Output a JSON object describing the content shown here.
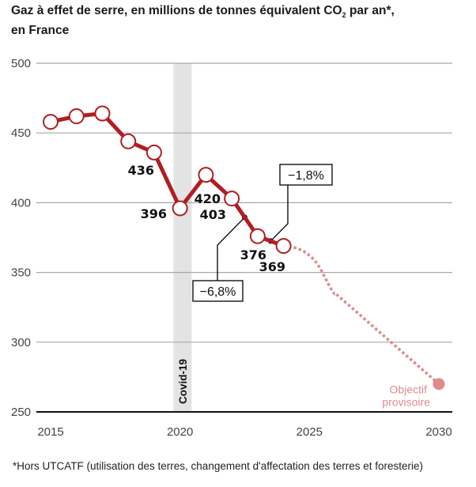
{
  "title_line1_pre": "Gaz à effet de serre, en millions de tonnes équivalent CO",
  "title_sub": "2",
  "title_line1_post": " par an*,",
  "title_line2": "en France",
  "footnote": "*Hors UTCATF (utilisation des terres, changement d'affectation des terres et foresterie)",
  "colors": {
    "line": "#b01e23",
    "projection": "#e08a8f",
    "covid_band": "#e3e3e3",
    "grid": "#a8a8a8",
    "axis": "#111111"
  },
  "chart_data": {
    "type": "line",
    "title": "Gaz à effet de serre, en millions de tonnes équivalent CO2 par an*, en France",
    "xlabel": "",
    "ylabel": "",
    "xlim": [
      2015,
      2030
    ],
    "ylim": [
      250,
      500
    ],
    "grid": true,
    "x_ticks": [
      "2015",
      "2020",
      "2025",
      "2030"
    ],
    "x_tick_values": [
      2015,
      2020,
      2025,
      2030
    ],
    "y_ticks": [
      "250",
      "300",
      "350",
      "400",
      "450",
      "500"
    ],
    "y_tick_values": [
      250,
      300,
      350,
      400,
      450,
      500
    ],
    "series": [
      {
        "name": "Émissions",
        "x": [
          2015,
          2016,
          2017,
          2018,
          2019,
          2020,
          2021,
          2022,
          2023,
          2024
        ],
        "values": [
          458,
          462,
          464,
          444,
          436,
          396,
          420,
          403,
          376,
          369
        ]
      },
      {
        "name": "Projection",
        "style": "dotted",
        "x": [
          2024,
          2025,
          2026,
          2030
        ],
        "values": [
          369,
          365,
          335,
          270
        ]
      }
    ],
    "data_labels": [
      {
        "year": 2019,
        "text": "436"
      },
      {
        "year": 2020,
        "text": "396"
      },
      {
        "year": 2021,
        "text": "420"
      },
      {
        "year": 2022,
        "text": "403"
      },
      {
        "year": 2023,
        "text": "376"
      },
      {
        "year": 2024,
        "text": "369"
      }
    ],
    "annotations": [
      {
        "text": "−6,8%",
        "between": [
          2022,
          2023
        ]
      },
      {
        "text": "−1,8%",
        "between": [
          2023,
          2024
        ]
      },
      {
        "text": "Covid-19",
        "band": [
          2019.75,
          2020.45
        ]
      },
      {
        "text_lines": [
          "Objectif",
          "provisoire"
        ],
        "year": 2030,
        "value": 270
      }
    ]
  }
}
